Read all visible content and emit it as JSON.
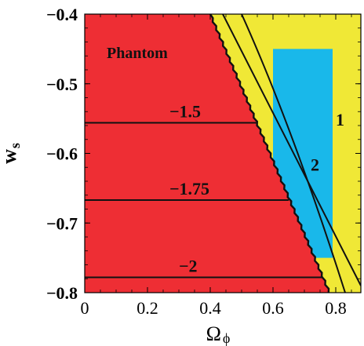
{
  "chart_data": {
    "type": "region-contour",
    "title": "",
    "xlabel": "Ω",
    "xlabel_sub": "ϕ",
    "ylabel": "w",
    "ylabel_sub": "s",
    "xlim": [
      0.0,
      0.88
    ],
    "ylim": [
      -0.8,
      -0.4
    ],
    "x_ticks": [
      0.0,
      0.2,
      0.4,
      0.6,
      0.8
    ],
    "x_tick_labels": [
      "0",
      "0.2",
      "0.4",
      "0.6",
      "0.8"
    ],
    "y_ticks": [
      -0.4,
      -0.5,
      -0.6,
      -0.7,
      -0.8
    ],
    "y_tick_labels": [
      "−0.4",
      "−0.5",
      "−0.6",
      "−0.7",
      "−0.8"
    ],
    "colors": {
      "phantom": "#ee2e34",
      "yellow": "#f0e836",
      "cyan": "#19b8ea",
      "line": "#111111",
      "frame": "#000000"
    },
    "regions": {
      "phantom_boundary": [
        [
          0.4,
          -0.4
        ],
        [
          0.78,
          -0.8
        ]
      ],
      "yellow_band": {
        "xmin": 0.4,
        "xmax": 0.88,
        "ymin": -0.8,
        "ymax": -0.4
      },
      "cyan_box": {
        "xmin": 0.6,
        "xmax": 0.79,
        "ymin": -0.75,
        "ymax": -0.45
      }
    },
    "horizontal_lines": [
      {
        "label": "−1.5",
        "y": -0.556,
        "x_end": 0.55,
        "label_x": 0.27
      },
      {
        "label": "−1.75",
        "y": -0.667,
        "x_end": 0.65,
        "label_x": 0.27
      },
      {
        "label": "−2",
        "y": -0.778,
        "x_end": 0.76,
        "label_x": 0.3
      }
    ],
    "curves": [
      {
        "label": "1",
        "points": [
          [
            0.44,
            -0.4
          ],
          [
            0.62,
            -0.56
          ],
          [
            0.88,
            -0.79
          ]
        ],
        "label_at": [
          0.8,
          -0.56
        ]
      },
      {
        "label": "2",
        "points": [
          [
            0.5,
            -0.4
          ],
          [
            0.66,
            -0.56
          ],
          [
            0.83,
            -0.8
          ]
        ],
        "label_at": [
          0.72,
          -0.625
        ]
      }
    ],
    "region_labels": [
      {
        "text": "Phantom",
        "at": [
          0.07,
          -0.463
        ]
      }
    ]
  }
}
